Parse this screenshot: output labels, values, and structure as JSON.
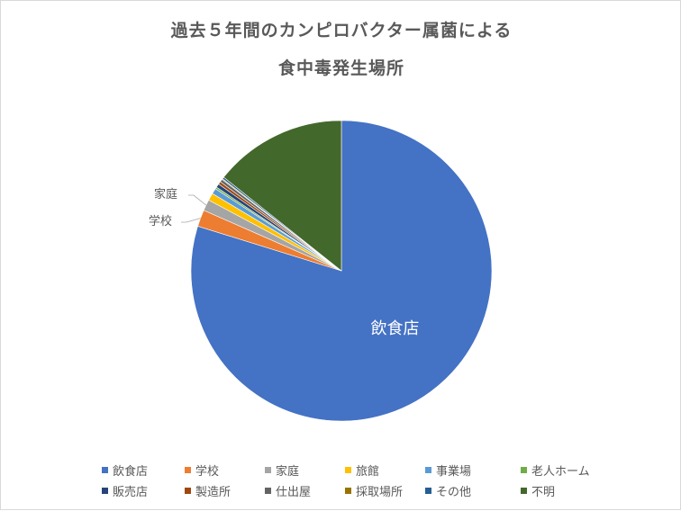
{
  "chart_data": {
    "type": "pie",
    "title": "過去５年間のカンピロバクター属菌による食中毒発生場所",
    "title_lines": [
      "過去５年間のカンピロバクター属菌による",
      "食中毒発生場所"
    ],
    "categories": [
      "飲食店",
      "学校",
      "家庭",
      "旅館",
      "事業場",
      "老人ホーム",
      "販売店",
      "製造所",
      "仕出屋",
      "採取場所",
      "その他",
      "不明"
    ],
    "values": [
      79.8,
      1.8,
      1.2,
      0.8,
      0.6,
      0.2,
      0.4,
      0.3,
      0.3,
      0.1,
      0.2,
      14.3
    ],
    "colors": [
      "#4472c4",
      "#ed7d31",
      "#a5a5a5",
      "#ffc000",
      "#5b9bd5",
      "#70ad47",
      "#264478",
      "#9e480e",
      "#636363",
      "#997300",
      "#255e91",
      "#43682b"
    ],
    "data_labels": [
      {
        "category": "飲食店",
        "text": "飲食店"
      },
      {
        "category": "家庭",
        "text": "家庭"
      },
      {
        "category": "学校",
        "text": "学校"
      }
    ],
    "legend_position": "bottom",
    "start_angle_deg": 0,
    "direction": "clockwise"
  }
}
